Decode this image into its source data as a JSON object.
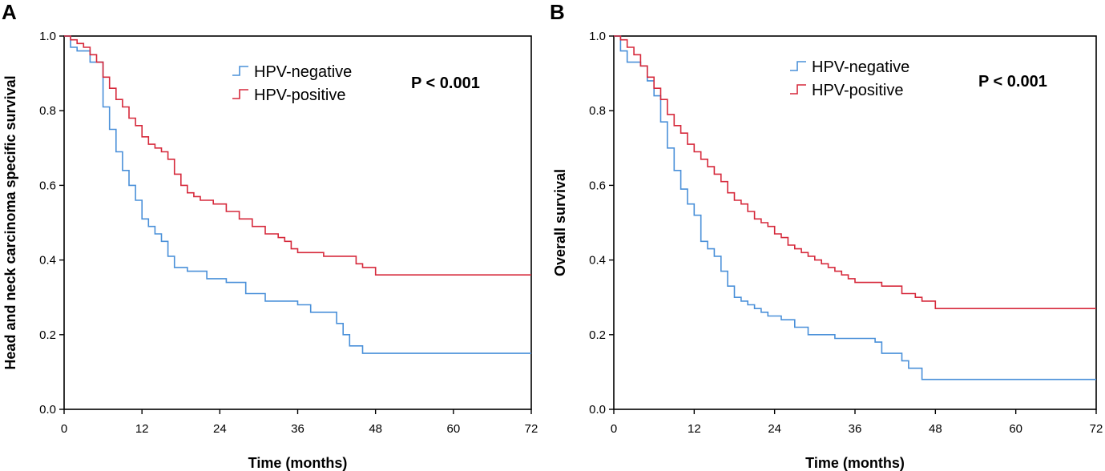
{
  "chart_data": [
    {
      "type": "line",
      "subtype": "kaplan-meier-step",
      "panel_label": "A",
      "xlabel": "Time (months)",
      "ylabel": "Head and neck carcinoma specific survival",
      "xlim": [
        0,
        72
      ],
      "ylim": [
        0,
        1
      ],
      "x_ticks": [
        "0",
        "12",
        "24",
        "36",
        "48",
        "60",
        "72"
      ],
      "y_ticks": [
        "0.0",
        "0.2",
        "0.4",
        "0.6",
        "0.8",
        "1.0"
      ],
      "legend": [
        "HPV-negative",
        "HPV-positive"
      ],
      "annotation": "P < 0.001",
      "series": [
        {
          "name": "HPV-negative",
          "color": "#4a90d9",
          "x": [
            0,
            1,
            2,
            4,
            6,
            7,
            8,
            9,
            10,
            11,
            12,
            13,
            14,
            15,
            16,
            17,
            19,
            22,
            25,
            28,
            31,
            36,
            38,
            42,
            43,
            44,
            46,
            72
          ],
          "y": [
            1.0,
            0.97,
            0.96,
            0.93,
            0.81,
            0.75,
            0.69,
            0.64,
            0.6,
            0.56,
            0.51,
            0.49,
            0.47,
            0.45,
            0.41,
            0.38,
            0.37,
            0.35,
            0.34,
            0.31,
            0.29,
            0.28,
            0.26,
            0.23,
            0.2,
            0.17,
            0.15,
            0.15
          ]
        },
        {
          "name": "HPV-positive",
          "color": "#d6293b",
          "x": [
            0,
            1,
            2,
            3,
            4,
            5,
            6,
            7,
            8,
            9,
            10,
            11,
            12,
            13,
            14,
            15,
            16,
            17,
            18,
            19,
            20,
            21,
            23,
            25,
            27,
            29,
            31,
            33,
            34,
            35,
            36,
            40,
            45,
            46,
            48,
            72
          ],
          "y": [
            1.0,
            0.99,
            0.98,
            0.97,
            0.95,
            0.93,
            0.89,
            0.86,
            0.83,
            0.81,
            0.78,
            0.76,
            0.73,
            0.71,
            0.7,
            0.69,
            0.67,
            0.63,
            0.6,
            0.58,
            0.57,
            0.56,
            0.55,
            0.53,
            0.51,
            0.49,
            0.47,
            0.46,
            0.45,
            0.43,
            0.42,
            0.41,
            0.39,
            0.38,
            0.36,
            0.36
          ]
        }
      ]
    },
    {
      "type": "line",
      "subtype": "kaplan-meier-step",
      "panel_label": "B",
      "xlabel": "Time (months)",
      "ylabel": "Overall survival",
      "xlim": [
        0,
        72
      ],
      "ylim": [
        0,
        1
      ],
      "x_ticks": [
        "0",
        "12",
        "24",
        "36",
        "48",
        "60",
        "72"
      ],
      "y_ticks": [
        "0.0",
        "0.2",
        "0.4",
        "0.6",
        "0.8",
        "1.0"
      ],
      "legend": [
        "HPV-negative",
        "HPV-positive"
      ],
      "annotation": "P < 0.001",
      "series": [
        {
          "name": "HPV-negative",
          "color": "#4a90d9",
          "x": [
            0,
            1,
            2,
            4,
            5,
            6,
            7,
            8,
            9,
            10,
            11,
            12,
            13,
            14,
            15,
            16,
            17,
            18,
            19,
            20,
            21,
            22,
            23,
            25,
            27,
            29,
            33,
            39,
            40,
            43,
            44,
            46,
            72
          ],
          "y": [
            1.0,
            0.96,
            0.93,
            0.92,
            0.88,
            0.84,
            0.77,
            0.7,
            0.64,
            0.59,
            0.55,
            0.52,
            0.45,
            0.43,
            0.41,
            0.37,
            0.33,
            0.3,
            0.29,
            0.28,
            0.27,
            0.26,
            0.25,
            0.24,
            0.22,
            0.2,
            0.19,
            0.18,
            0.15,
            0.13,
            0.11,
            0.08,
            0.08
          ]
        },
        {
          "name": "HPV-positive",
          "color": "#d6293b",
          "x": [
            0,
            1,
            2,
            3,
            4,
            5,
            6,
            7,
            8,
            9,
            10,
            11,
            12,
            13,
            14,
            15,
            16,
            17,
            18,
            19,
            20,
            21,
            22,
            23,
            24,
            25,
            26,
            27,
            28,
            29,
            30,
            31,
            32,
            33,
            34,
            35,
            36,
            40,
            43,
            45,
            46,
            48,
            72
          ],
          "y": [
            1.0,
            0.99,
            0.97,
            0.95,
            0.92,
            0.89,
            0.86,
            0.83,
            0.79,
            0.76,
            0.74,
            0.71,
            0.69,
            0.67,
            0.65,
            0.63,
            0.61,
            0.58,
            0.56,
            0.55,
            0.53,
            0.51,
            0.5,
            0.49,
            0.47,
            0.46,
            0.44,
            0.43,
            0.42,
            0.41,
            0.4,
            0.39,
            0.38,
            0.37,
            0.36,
            0.35,
            0.34,
            0.33,
            0.31,
            0.3,
            0.29,
            0.27,
            0.27
          ]
        }
      ]
    }
  ]
}
